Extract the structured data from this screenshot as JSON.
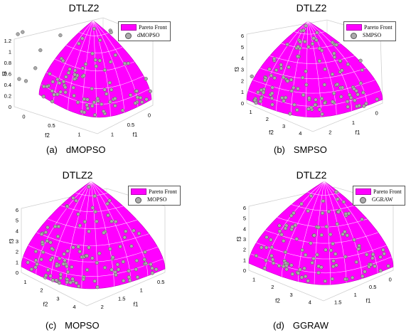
{
  "colors": {
    "front": "#ff00ff",
    "grid": "#ffffff",
    "point_fill": "#a9a9a9",
    "point_stroke": "#555555",
    "axis": "#000000"
  },
  "panels": [
    {
      "id": "a",
      "caption_letter": "(a)",
      "caption_name": "dMOPSO",
      "title": "DTLZ2",
      "legend": [
        "Pareto Front",
        "dMOPSO"
      ],
      "chart_data": {
        "type": "scatter3d",
        "title": "DTLZ2",
        "xlabel": "f1",
        "ylabel": "f2",
        "zlabel": "f3",
        "xlim": [
          0,
          1.0
        ],
        "ylim": [
          0,
          1.0
        ],
        "zlim": [
          0,
          1.2
        ],
        "x_ticks": [
          "0",
          "0.5",
          "1"
        ],
        "y_ticks": [
          "0",
          "0.5",
          "1"
        ],
        "z_ticks": [
          "0",
          "0.2",
          "0.4",
          "0.6",
          "0.8",
          "1",
          "1.2"
        ],
        "series": [
          {
            "name": "Pareto Front",
            "kind": "surface"
          },
          {
            "name": "dMOPSO",
            "kind": "points"
          }
        ]
      }
    },
    {
      "id": "b",
      "caption_letter": "(b)",
      "caption_name": "SMPSO",
      "title": "DTLZ2",
      "legend": [
        "Pareto Front",
        "SMPSO"
      ],
      "chart_data": {
        "type": "scatter3d",
        "title": "DTLZ2",
        "xlabel": "f1",
        "ylabel": "f2",
        "zlabel": "f3",
        "xlim": [
          0,
          2.0
        ],
        "ylim": [
          0,
          4.0
        ],
        "zlim": [
          0,
          6.0
        ],
        "x_ticks": [
          "0",
          "1",
          "2"
        ],
        "y_ticks": [
          "1",
          "2",
          "3",
          "4"
        ],
        "z_ticks": [
          "0",
          "1",
          "2",
          "3",
          "4",
          "5",
          "6"
        ],
        "series": [
          {
            "name": "Pareto Front",
            "kind": "surface"
          },
          {
            "name": "SMPSO",
            "kind": "points"
          }
        ]
      }
    },
    {
      "id": "c",
      "caption_letter": "(c)",
      "caption_name": "MOPSO",
      "title": "DTLZ2",
      "legend": [
        "Pareto Front",
        "MOPSO"
      ],
      "chart_data": {
        "type": "scatter3d",
        "title": "DTLZ2",
        "xlabel": "f1",
        "ylabel": "f2",
        "zlabel": "f3",
        "xlim": [
          0,
          2.0
        ],
        "ylim": [
          0,
          4.0
        ],
        "zlim": [
          0,
          6.0
        ],
        "x_ticks": [
          "0.5",
          "1",
          "1.5",
          "2"
        ],
        "y_ticks": [
          "1",
          "2",
          "3",
          "4"
        ],
        "z_ticks": [
          "0",
          "1",
          "2",
          "3",
          "4",
          "5",
          "6"
        ],
        "series": [
          {
            "name": "Pareto Front",
            "kind": "surface"
          },
          {
            "name": "MOPSO",
            "kind": "points"
          }
        ]
      }
    },
    {
      "id": "d",
      "caption_letter": "(d)",
      "caption_name": "GGRAW",
      "title": "DTLZ2",
      "legend": [
        "Pareto Front",
        "GGRAW"
      ],
      "chart_data": {
        "type": "scatter3d",
        "title": "DTLZ2",
        "xlabel": "f1",
        "ylabel": "f2",
        "zlabel": "f3",
        "xlim": [
          0,
          2.0
        ],
        "ylim": [
          0,
          4.0
        ],
        "zlim": [
          0,
          6.0
        ],
        "x_ticks": [
          "0",
          "0.5",
          "1",
          "1.5"
        ],
        "y_ticks": [
          "1",
          "2",
          "3",
          "4"
        ],
        "z_ticks": [
          "0",
          "1",
          "2",
          "3",
          "4",
          "5",
          "6"
        ],
        "series": [
          {
            "name": "Pareto Front",
            "kind": "surface"
          },
          {
            "name": "GGRAW",
            "kind": "points"
          }
        ]
      }
    }
  ]
}
